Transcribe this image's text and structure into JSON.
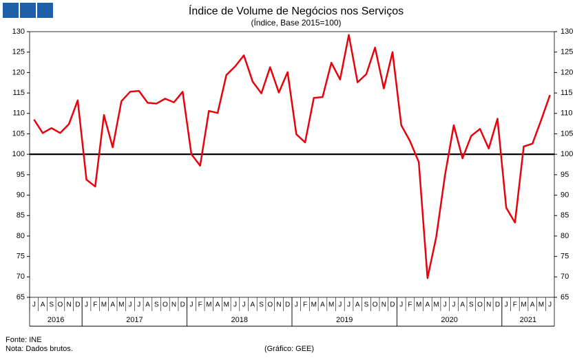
{
  "chart_data": {
    "type": "line",
    "title": "Índice de Volume de Negócios nos Serviços",
    "subtitle": "(Índice, Base 2015=100)",
    "categories": [
      "J",
      "A",
      "S",
      "O",
      "N",
      "D",
      "J",
      "F",
      "M",
      "A",
      "M",
      "J",
      "J",
      "A",
      "S",
      "O",
      "N",
      "D",
      "J",
      "F",
      "M",
      "A",
      "M",
      "J",
      "J",
      "A",
      "S",
      "O",
      "N",
      "D",
      "J",
      "F",
      "M",
      "A",
      "M",
      "J",
      "J",
      "A",
      "S",
      "O",
      "N",
      "D",
      "J",
      "F",
      "M",
      "A",
      "M",
      "J",
      "J",
      "A",
      "S",
      "O",
      "N",
      "D",
      "J",
      "F",
      "M",
      "A",
      "M",
      "J"
    ],
    "category_groups": [
      {
        "label": "2016",
        "span": 6
      },
      {
        "label": "2017",
        "span": 12
      },
      {
        "label": "2018",
        "span": 12
      },
      {
        "label": "2019",
        "span": 12
      },
      {
        "label": "2020",
        "span": 12
      },
      {
        "label": "2021",
        "span": 6
      }
    ],
    "series": [
      {
        "name": "Índice de Volume de Negócios nos Serviços",
        "color": "#e8000b",
        "values": [
          108.5,
          105.2,
          106.4,
          105.2,
          107.4,
          113.2,
          93.8,
          92.1,
          109.6,
          101.7,
          113.0,
          115.3,
          115.5,
          112.6,
          112.4,
          113.6,
          112.7,
          115.3,
          100.0,
          97.2,
          110.6,
          110.1,
          119.4,
          121.5,
          124.2,
          117.8,
          114.9,
          121.3,
          115.1,
          120.1,
          104.9,
          102.9,
          113.8,
          114.0,
          122.4,
          118.3,
          129.2,
          117.6,
          119.6,
          126.1,
          116.1,
          125.0,
          107.1,
          103.2,
          98.1,
          69.7,
          79.8,
          94.9,
          107.1,
          99.0,
          104.5,
          106.2,
          101.4,
          108.7,
          86.9,
          83.3,
          101.9,
          102.6,
          108.4,
          114.5
        ]
      }
    ],
    "ylim": [
      65,
      130
    ],
    "yticks": [
      65,
      70,
      75,
      80,
      85,
      90,
      95,
      100,
      105,
      110,
      115,
      120,
      125,
      130
    ],
    "reference_line": 100,
    "reference_color": "#000000",
    "source": "Fonte: INE",
    "note": "Nota: Dados brutos.",
    "credit": "(Gráfico: GEE)"
  }
}
